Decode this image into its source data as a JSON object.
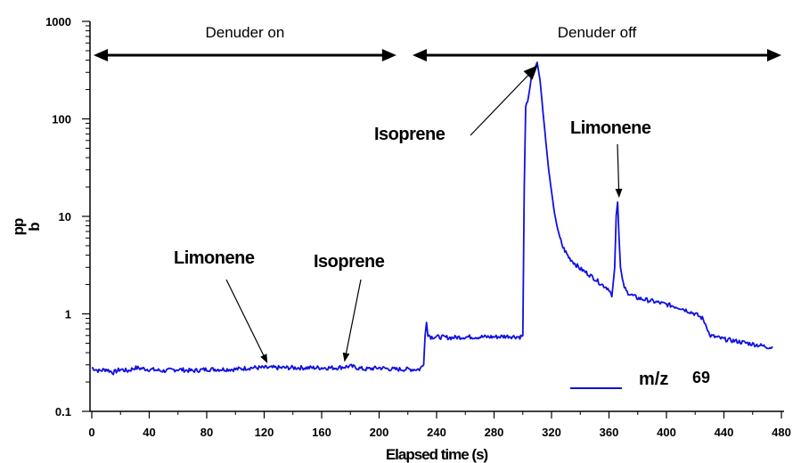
{
  "chart_data": {
    "type": "line",
    "title": "",
    "xlabel": "Elapsed time (s)",
    "ylabel": "pp b",
    "ylabel_lines": [
      "pp",
      "b"
    ],
    "xlim": [
      0,
      480
    ],
    "ylim": [
      0.1,
      1000
    ],
    "yscale": "log",
    "x_ticks": [
      0,
      40,
      80,
      120,
      160,
      200,
      240,
      280,
      320,
      360,
      400,
      440,
      480
    ],
    "y_ticks": [
      {
        "value": 0.1,
        "label": "0.1"
      },
      {
        "value": 1,
        "label": "1"
      },
      {
        "value": 10,
        "label": "10"
      },
      {
        "value": 100,
        "label": "100"
      },
      {
        "value": 1000,
        "label": "1000"
      }
    ],
    "grid": false,
    "legend": {
      "position": "bottom-right",
      "label": "m/z",
      "superscript": "69"
    },
    "series": [
      {
        "name": "m/z 69",
        "color": "#1010e0",
        "points": [
          [
            0,
            0.28
          ],
          [
            5,
            0.26
          ],
          [
            10,
            0.27
          ],
          [
            15,
            0.25
          ],
          [
            20,
            0.27
          ],
          [
            25,
            0.26
          ],
          [
            30,
            0.28
          ],
          [
            40,
            0.27
          ],
          [
            50,
            0.26
          ],
          [
            60,
            0.27
          ],
          [
            70,
            0.26
          ],
          [
            80,
            0.27
          ],
          [
            90,
            0.27
          ],
          [
            100,
            0.27
          ],
          [
            110,
            0.28
          ],
          [
            120,
            0.28
          ],
          [
            130,
            0.28
          ],
          [
            140,
            0.28
          ],
          [
            150,
            0.28
          ],
          [
            160,
            0.28
          ],
          [
            170,
            0.28
          ],
          [
            180,
            0.29
          ],
          [
            190,
            0.27
          ],
          [
            200,
            0.28
          ],
          [
            210,
            0.27
          ],
          [
            220,
            0.27
          ],
          [
            228,
            0.27
          ],
          [
            231,
            0.3
          ],
          [
            232,
            0.6
          ],
          [
            233,
            0.85
          ],
          [
            234,
            0.62
          ],
          [
            236,
            0.58
          ],
          [
            240,
            0.58
          ],
          [
            250,
            0.57
          ],
          [
            260,
            0.58
          ],
          [
            270,
            0.58
          ],
          [
            280,
            0.58
          ],
          [
            290,
            0.59
          ],
          [
            298,
            0.58
          ],
          [
            300,
            0.6
          ],
          [
            301,
            20
          ],
          [
            302,
            130
          ],
          [
            304,
            170
          ],
          [
            306,
            260
          ],
          [
            308,
            330
          ],
          [
            310,
            380
          ],
          [
            312,
            250
          ],
          [
            314,
            120
          ],
          [
            316,
            60
          ],
          [
            318,
            30
          ],
          [
            320,
            18
          ],
          [
            322,
            11
          ],
          [
            325,
            6.5
          ],
          [
            328,
            4.8
          ],
          [
            332,
            3.8
          ],
          [
            336,
            3.3
          ],
          [
            340,
            2.9
          ],
          [
            345,
            2.6
          ],
          [
            350,
            2.3
          ],
          [
            355,
            2.0
          ],
          [
            360,
            1.8
          ],
          [
            362,
            1.5
          ],
          [
            364,
            3
          ],
          [
            365,
            10
          ],
          [
            366,
            14
          ],
          [
            367,
            6
          ],
          [
            368,
            3
          ],
          [
            370,
            2.0
          ],
          [
            372,
            1.7
          ],
          [
            376,
            1.55
          ],
          [
            380,
            1.45
          ],
          [
            390,
            1.35
          ],
          [
            400,
            1.25
          ],
          [
            410,
            1.15
          ],
          [
            420,
            1.0
          ],
          [
            425,
            0.9
          ],
          [
            428,
            0.75
          ],
          [
            430,
            0.6
          ],
          [
            440,
            0.55
          ],
          [
            450,
            0.52
          ],
          [
            460,
            0.49
          ],
          [
            470,
            0.46
          ],
          [
            474,
            0.45
          ]
        ]
      }
    ],
    "annotations": [
      {
        "id": "denuder-on",
        "text": "Denuder on",
        "style": "plain",
        "span": [
          0,
          212
        ],
        "level": 450
      },
      {
        "id": "denuder-off",
        "text": "Denuder off",
        "style": "plain",
        "span": [
          222,
          480
        ],
        "level": 450
      },
      {
        "id": "isoprene-peak",
        "text": "Isoprene",
        "style": "bold",
        "x": 310,
        "y": 380
      },
      {
        "id": "limonene-peak",
        "text": "Limonene",
        "style": "bold",
        "x": 367,
        "y": 14
      },
      {
        "id": "limonene-baseline",
        "text": "Limonene",
        "style": "bold",
        "x": 122,
        "y": 0.28
      },
      {
        "id": "isoprene-baseline",
        "text": "Isoprene",
        "style": "bold",
        "x": 176,
        "y": 0.29
      }
    ]
  }
}
